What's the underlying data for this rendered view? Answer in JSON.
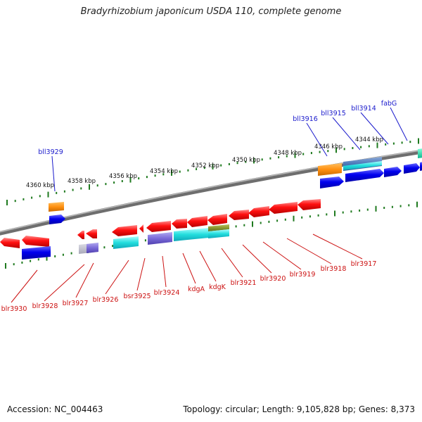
{
  "title": "Bradyrhizobium japonicum USDA 110, complete genome",
  "footer": {
    "accession": "Accession: NC_004463",
    "summary": "Topology: circular; Length: 9,105,828 bp; Genes: 8,373"
  },
  "colors": {
    "backbone": "#8a8a8a",
    "tick": "#1f7a1f",
    "forward_label": "#1a1acc",
    "reverse_label": "#cc1111"
  },
  "scale_ticks": [
    "4360 kbp",
    "4358 kbp",
    "4356 kbp",
    "4354 kbp",
    "4352 kbp",
    "4350 kbp",
    "4348 kbp",
    "4346 kbp",
    "4344 kbp"
  ],
  "forward_labels": [
    "bll3929",
    "bll3916",
    "bll3915",
    "bll3914",
    "fabG"
  ],
  "reverse_labels": [
    "blr3930",
    "blr3928",
    "blr3927",
    "blr3926",
    "bsr3925",
    "blr3924",
    "kdgA",
    "kdgK",
    "blr3921",
    "blr3920",
    "blr3919",
    "blr3918",
    "blr3917"
  ]
}
